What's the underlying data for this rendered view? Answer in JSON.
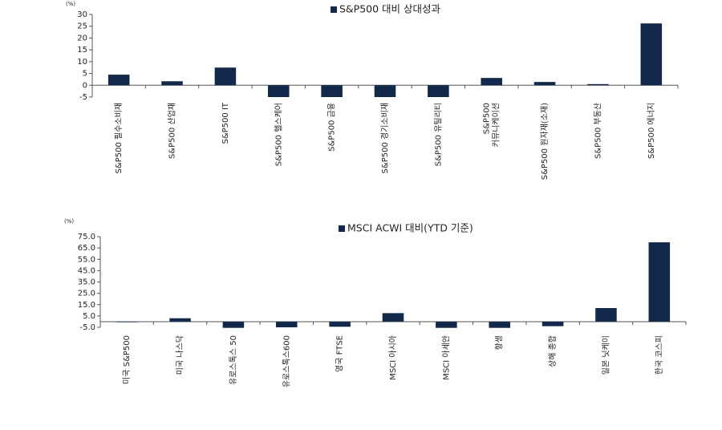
{
  "chart_data": [
    {
      "type": "bar",
      "unit_label": "(%)",
      "categories": [
        "S&P500 필수소비재",
        "S&P500 산업재",
        "S&P500 IT",
        "S&P500 헬스케어",
        "S&P500 금융",
        "S&P500 경기소비재",
        "S&P500 유틸리티",
        "S&P500\n커뮤니케이션",
        "S&P500 원자재(소재)",
        "S&P500 부동산",
        "S&P500 에너지"
      ],
      "series": [
        {
          "name": "S&P500 대비 상대성과",
          "color": "#13294b",
          "values": [
            4.5,
            1.7,
            7.5,
            -5,
            -5,
            -5,
            -5,
            3.1,
            1.4,
            0.5,
            26.2
          ]
        }
      ],
      "ylim": [
        -5,
        30
      ],
      "yticks": [
        -5,
        0,
        5,
        10,
        15,
        20,
        25,
        30
      ]
    },
    {
      "type": "bar",
      "unit_label": "(%)",
      "categories": [
        "미국 S&P500",
        "미국 나스닥",
        "유로스톡스 50",
        "유로스톡스600",
        "영국 FTSE",
        "MSCI 아시아",
        "MSCI 아세안",
        "항셍",
        "상해 종합",
        "일본 닛케이",
        "한국 코스피"
      ],
      "series": [
        {
          "name": "MSCI ACWI 대비(YTD 기준)",
          "color": "#13294b",
          "values": [
            -0.5,
            3,
            -5.5,
            -5,
            -4.5,
            7.5,
            -5.5,
            -5.5,
            -4,
            12,
            70
          ]
        }
      ],
      "ylim": [
        -5,
        75
      ],
      "yticks": [
        {
          "value": -5,
          "label": "-5.0"
        },
        {
          "value": 5,
          "label": "5.0"
        },
        {
          "value": 15,
          "label": "15.0"
        },
        {
          "value": 25,
          "label": "25.0"
        },
        {
          "value": 35,
          "label": "35.0"
        },
        {
          "value": 45,
          "label": "45.0"
        },
        {
          "value": 55,
          "label": "55.0"
        },
        {
          "value": 65,
          "label": "65.0"
        },
        {
          "value": 75,
          "label": "75.0"
        }
      ]
    }
  ]
}
